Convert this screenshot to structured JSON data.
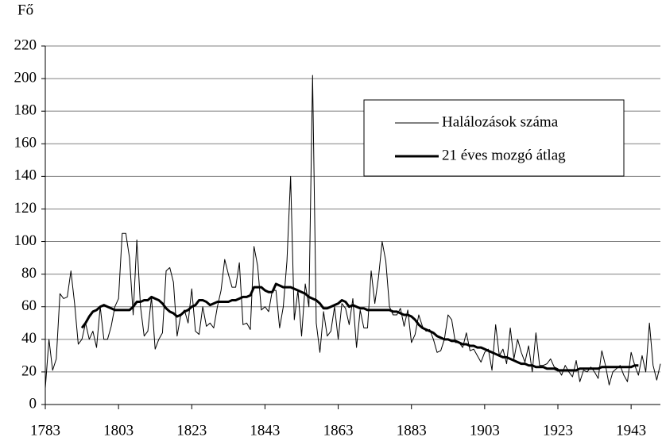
{
  "chart_data": {
    "type": "line",
    "y_label": "Fő",
    "x": [
      1783,
      1784,
      1785,
      1786,
      1787,
      1788,
      1789,
      1790,
      1791,
      1792,
      1793,
      1794,
      1795,
      1796,
      1797,
      1798,
      1799,
      1800,
      1801,
      1802,
      1803,
      1804,
      1805,
      1806,
      1807,
      1808,
      1809,
      1810,
      1811,
      1812,
      1813,
      1814,
      1815,
      1816,
      1817,
      1818,
      1819,
      1820,
      1821,
      1822,
      1823,
      1824,
      1825,
      1826,
      1827,
      1828,
      1829,
      1830,
      1831,
      1832,
      1833,
      1834,
      1835,
      1836,
      1837,
      1838,
      1839,
      1840,
      1841,
      1842,
      1843,
      1844,
      1845,
      1846,
      1847,
      1848,
      1849,
      1850,
      1851,
      1852,
      1853,
      1854,
      1855,
      1856,
      1857,
      1858,
      1859,
      1860,
      1861,
      1862,
      1863,
      1864,
      1865,
      1866,
      1867,
      1868,
      1869,
      1870,
      1871,
      1872,
      1873,
      1874,
      1875,
      1876,
      1877,
      1878,
      1879,
      1880,
      1881,
      1882,
      1883,
      1884,
      1885,
      1886,
      1887,
      1888,
      1889,
      1890,
      1891,
      1892,
      1893,
      1894,
      1895,
      1896,
      1897,
      1898,
      1899,
      1900,
      1901,
      1902,
      1903,
      1904,
      1905,
      1906,
      1907,
      1908,
      1909,
      1910,
      1911,
      1912,
      1913,
      1914,
      1915,
      1916,
      1917,
      1918,
      1919,
      1920,
      1921,
      1922,
      1923,
      1924,
      1925,
      1926,
      1927,
      1928,
      1929,
      1930,
      1931,
      1932,
      1933,
      1934,
      1935,
      1936,
      1937,
      1938,
      1939,
      1940,
      1941,
      1942,
      1943,
      1944,
      1945,
      1946,
      1947,
      1948,
      1949,
      1950,
      1951
    ],
    "series": [
      {
        "name": "Halálozások száma",
        "color": "#000000",
        "width": 1,
        "values": [
          10,
          40,
          21,
          28,
          68,
          65,
          66,
          82,
          62,
          37,
          40,
          50,
          40,
          45,
          35,
          60,
          40,
          40,
          48,
          60,
          65,
          105,
          105,
          90,
          55,
          101,
          60,
          42,
          45,
          66,
          34,
          40,
          44,
          82,
          84,
          75,
          42,
          55,
          58,
          50,
          71,
          45,
          43,
          60,
          48,
          50,
          47,
          60,
          70,
          89,
          80,
          72,
          72,
          87,
          49,
          50,
          46,
          97,
          85,
          58,
          60,
          57,
          70,
          70,
          47,
          60,
          88,
          140,
          52,
          70,
          42,
          74,
          60,
          202,
          50,
          32,
          57,
          42,
          45,
          60,
          40,
          62,
          59,
          49,
          65,
          35,
          58,
          47,
          47,
          82,
          62,
          78,
          100,
          88,
          60,
          55,
          55,
          59,
          48,
          58,
          38,
          43,
          55,
          48,
          45,
          46,
          40,
          32,
          33,
          40,
          55,
          52,
          38,
          38,
          35,
          44,
          33,
          34,
          30,
          26,
          32,
          34,
          21,
          49,
          30,
          34,
          25,
          47,
          28,
          40,
          32,
          26,
          36,
          20,
          44,
          24,
          24,
          25,
          28,
          23,
          22,
          18,
          24,
          20,
          17,
          27,
          14,
          21,
          20,
          23,
          20,
          16,
          33,
          24,
          12,
          20,
          22,
          24,
          18,
          14,
          32,
          24,
          18,
          30,
          20,
          50,
          24,
          15,
          25
        ]
      },
      {
        "name": "21 éves mozgó átlag",
        "color": "#000000",
        "width": 3,
        "values": [
          null,
          null,
          null,
          null,
          null,
          null,
          null,
          null,
          null,
          null,
          47,
          50,
          54,
          57,
          58,
          60,
          61,
          60,
          59,
          58,
          58,
          58,
          58,
          58,
          60,
          63,
          63,
          64,
          64,
          66,
          65,
          64,
          62,
          59,
          57,
          56,
          54,
          55,
          57,
          58,
          60,
          61,
          64,
          64,
          63,
          61,
          62,
          63,
          63,
          63,
          63,
          64,
          64,
          65,
          66,
          66,
          67,
          72,
          72,
          72,
          70,
          69,
          69,
          74,
          73,
          72,
          72,
          72,
          71,
          70,
          69,
          68,
          66,
          65,
          64,
          62,
          59,
          59,
          60,
          61,
          62,
          64,
          63,
          60,
          61,
          60,
          59,
          59,
          58,
          58,
          58,
          58,
          58,
          58,
          58,
          57,
          57,
          56,
          55,
          55,
          54,
          52,
          49,
          47,
          46,
          45,
          44,
          42,
          41,
          40,
          40,
          39,
          39,
          38,
          37,
          37,
          36,
          36,
          35,
          35,
          34,
          33,
          32,
          31,
          30,
          29,
          29,
          28,
          27,
          26,
          25,
          25,
          24,
          24,
          23,
          23,
          23,
          22,
          22,
          22,
          21,
          21,
          21,
          21,
          21,
          21,
          22,
          22,
          22,
          22,
          22,
          22,
          23,
          23,
          23,
          23,
          23,
          23,
          23,
          23,
          23,
          24,
          24,
          null,
          null,
          null,
          null,
          null,
          null
        ]
      }
    ],
    "xlim": [
      1783,
      1951
    ],
    "xticks": [
      1783,
      1803,
      1823,
      1843,
      1863,
      1883,
      1903,
      1923,
      1943
    ],
    "ylim": [
      0,
      220
    ],
    "yticks": [
      0,
      20,
      40,
      60,
      80,
      100,
      120,
      140,
      160,
      180,
      200,
      220
    ],
    "grid": true,
    "legend": "upper right"
  }
}
